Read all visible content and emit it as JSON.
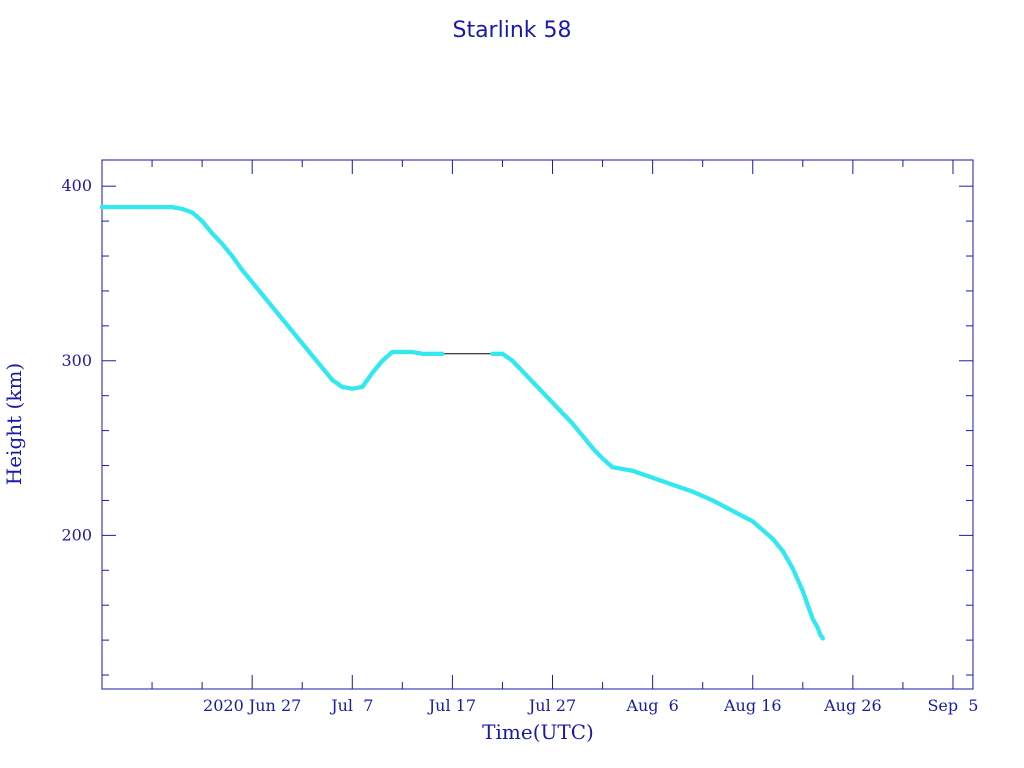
{
  "chart_data": {
    "type": "scatter",
    "title": "Starlink 58",
    "xlabel": "Time(UTC)",
    "ylabel": "Height (km)",
    "x_range": [
      "2020-06-12",
      "2020-09-07"
    ],
    "ylim": [
      112,
      415
    ],
    "y_major_ticks": [
      200,
      300,
      400
    ],
    "y_minor_step": 20,
    "x_ticks": [
      {
        "date": "2020-06-27",
        "label": "2020 Jun 27"
      },
      {
        "date": "2020-07-07",
        "label": "Jul  7"
      },
      {
        "date": "2020-07-17",
        "label": "Jul 17"
      },
      {
        "date": "2020-07-27",
        "label": "Jul 27"
      },
      {
        "date": "2020-08-06",
        "label": "Aug  6"
      },
      {
        "date": "2020-08-16",
        "label": "Aug 16"
      },
      {
        "date": "2020-08-26",
        "label": "Aug 26"
      },
      {
        "date": "2020-09-05",
        "label": "Sep  5"
      }
    ],
    "x_minor_step_days": 5,
    "line_color": "#000000",
    "marker_color": "#33e8f0",
    "axis_color": "#1a1aa8",
    "series": [
      {
        "x": [
          "2020-06-12T00:00",
          "2020-06-13T00:00",
          "2020-06-14T00:00",
          "2020-06-15T00:00",
          "2020-06-16T00:00",
          "2020-06-17T00:00",
          "2020-06-18T00:00",
          "2020-06-19T00:00",
          "2020-06-20T00:00",
          "2020-06-21T00:00",
          "2020-06-22T00:00",
          "2020-06-23T00:00",
          "2020-06-24T00:00",
          "2020-06-25T00:00",
          "2020-06-26T00:00",
          "2020-06-27T00:00",
          "2020-06-28T00:00",
          "2020-06-29T00:00",
          "2020-06-30T00:00",
          "2020-07-01T00:00",
          "2020-07-02T00:00",
          "2020-07-03T00:00",
          "2020-07-04T00:00",
          "2020-07-05T00:00",
          "2020-07-06T00:00",
          "2020-07-07T00:00",
          "2020-07-08T00:00",
          "2020-07-09T00:00",
          "2020-07-10T00:00",
          "2020-07-11T00:00",
          "2020-07-12T00:00",
          "2020-07-12T12:00",
          "2020-07-13T00:00",
          "2020-07-14T00:00",
          "2020-07-15T00:00",
          "2020-07-16T00:00",
          "2020-07-21T00:00",
          "2020-07-22T00:00",
          "2020-07-23T00:00",
          "2020-07-24T00:00",
          "2020-07-25T00:00",
          "2020-07-26T00:00",
          "2020-07-27T00:00",
          "2020-07-28T00:00",
          "2020-07-29T00:00",
          "2020-07-30T00:00",
          "2020-07-31T00:00",
          "2020-08-01T00:00",
          "2020-08-02T00:00",
          "2020-08-03T00:00",
          "2020-08-04T00:00",
          "2020-08-06T00:00",
          "2020-08-08T00:00",
          "2020-08-10T00:00",
          "2020-08-12T00:00",
          "2020-08-14T00:00",
          "2020-08-16T00:00",
          "2020-08-17T00:00",
          "2020-08-18T00:00",
          "2020-08-19T00:00",
          "2020-08-20T00:00",
          "2020-08-21T00:00",
          "2020-08-22T00:00",
          "2020-08-22T12:00",
          "2020-08-22T18:00",
          "2020-08-23T00:00"
        ],
        "y": [
          388,
          388,
          388,
          388,
          388,
          388,
          388,
          388,
          387,
          385,
          380,
          373,
          367,
          360,
          352,
          345,
          338,
          331,
          324,
          317,
          310,
          303,
          296,
          289,
          285,
          284,
          285,
          293,
          300,
          305,
          305,
          305,
          305,
          304,
          304,
          304,
          304,
          304,
          300,
          294,
          288,
          282,
          276,
          270,
          264,
          257,
          250,
          244,
          239,
          238,
          237,
          233,
          229,
          225,
          220,
          214,
          208,
          203,
          198,
          191,
          181,
          168,
          152,
          147,
          143,
          141
        ]
      }
    ]
  }
}
